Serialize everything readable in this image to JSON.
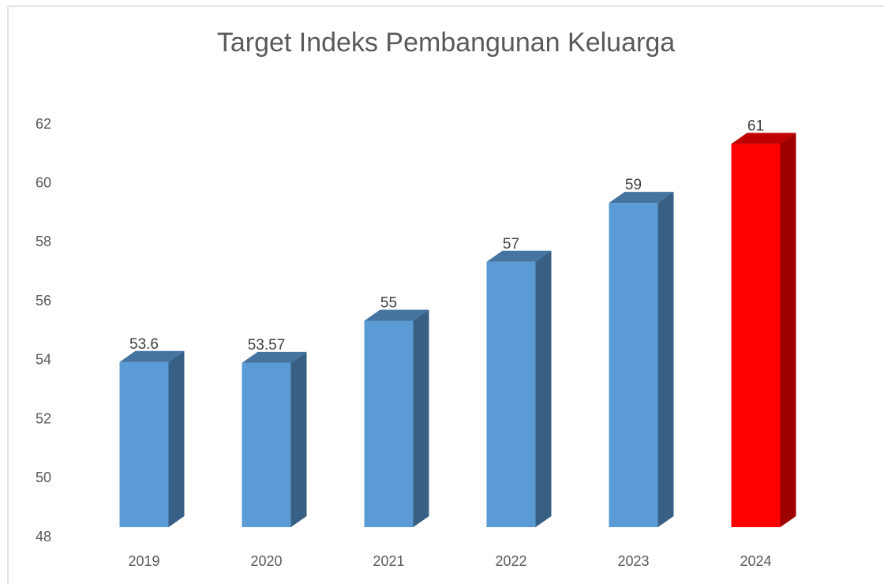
{
  "chart_data": {
    "type": "bar3d",
    "title": "Target Indeks Pembangunan Keluarga",
    "categories": [
      "2019",
      "2020",
      "2021",
      "2022",
      "2023",
      "2024"
    ],
    "values": [
      53.6,
      53.57,
      55,
      57,
      59,
      61
    ],
    "colors": [
      "#5b9bd5",
      "#5b9bd5",
      "#5b9bd5",
      "#5b9bd5",
      "#5b9bd5",
      "#ff0000"
    ],
    "ylim": [
      48,
      62
    ],
    "yticks": [
      48,
      50,
      52,
      54,
      56,
      58,
      60,
      62
    ],
    "grid": false
  }
}
